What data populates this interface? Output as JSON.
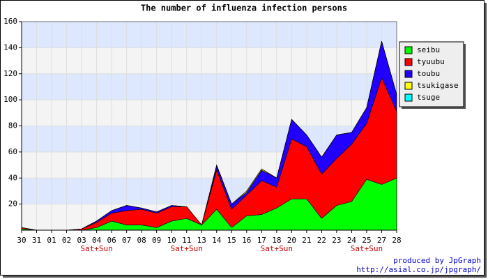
{
  "chart_data": {
    "type": "stacked_area",
    "title": "The number of influenza infection persons",
    "categories": [
      "30",
      "31",
      "01",
      "02",
      "03",
      "04",
      "06",
      "07",
      "08",
      "09",
      "10",
      "11",
      "13",
      "14",
      "15",
      "16",
      "17",
      "18",
      "20",
      "21",
      "22",
      "23",
      "24",
      "25",
      "27",
      "28"
    ],
    "category_notes": [
      null,
      null,
      null,
      null,
      null,
      "Sat+Sun",
      null,
      null,
      null,
      null,
      null,
      "Sat+Sun",
      null,
      null,
      null,
      null,
      null,
      "Sat+Sun",
      null,
      null,
      null,
      null,
      null,
      "Sat+Sun",
      null,
      null
    ],
    "series": [
      {
        "name": "seibu",
        "color": "#00ff00",
        "values": [
          1,
          0,
          0,
          0,
          0,
          2,
          7,
          4,
          4,
          2,
          7,
          9,
          4,
          16,
          2,
          11,
          12,
          17,
          24,
          24,
          9,
          19,
          22,
          39,
          35,
          40
        ]
      },
      {
        "name": "tyuubu",
        "color": "#ff0000",
        "values": [
          1,
          0,
          0,
          0,
          1,
          4,
          6,
          11,
          12,
          11,
          11,
          9,
          0,
          30,
          14,
          16,
          26,
          16,
          46,
          40,
          34,
          36,
          44,
          43,
          82,
          51
        ]
      },
      {
        "name": "toubu",
        "color": "#2200ff",
        "values": [
          0,
          0,
          0,
          0,
          0,
          1,
          2,
          4,
          1,
          1,
          1,
          0,
          0,
          3,
          4,
          2,
          8,
          7,
          15,
          9,
          13,
          18,
          9,
          12,
          28,
          13
        ]
      },
      {
        "name": "tsukigase",
        "color": "#ffff00",
        "values": [
          0,
          0,
          0,
          0,
          0,
          0,
          0,
          0,
          0,
          0,
          0,
          0,
          0,
          1,
          0,
          1,
          1,
          0,
          0,
          0,
          0,
          0,
          0,
          0,
          0,
          0
        ]
      },
      {
        "name": "tsuge",
        "color": "#00ffff",
        "values": [
          0,
          0,
          0,
          0,
          0,
          0,
          0,
          0,
          0,
          0,
          0,
          0,
          0,
          0,
          0,
          0,
          0,
          0,
          0,
          0,
          0,
          0,
          0,
          0,
          0,
          0
        ]
      }
    ],
    "ylim": [
      0,
      160
    ],
    "yticks": [
      20,
      40,
      60,
      80,
      100,
      120,
      140,
      160
    ],
    "grid": true,
    "footer": [
      "produced by JpGraph",
      "http://asial.co.jp/jpgraph/"
    ]
  }
}
